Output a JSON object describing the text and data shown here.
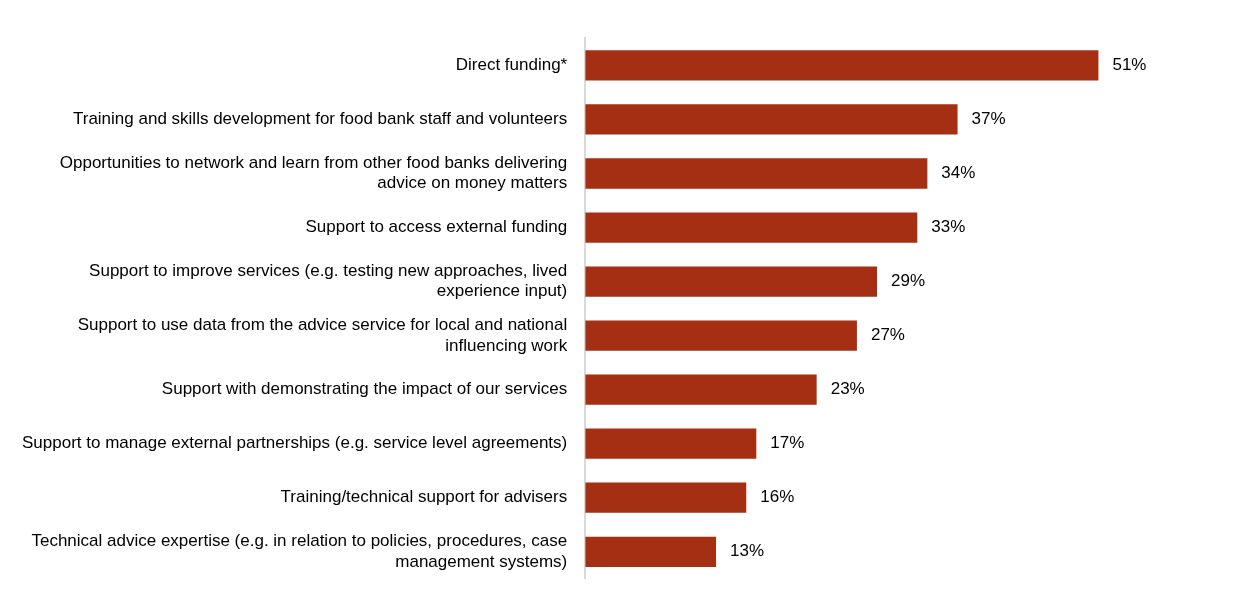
{
  "chart_data": {
    "type": "bar",
    "orientation": "horizontal",
    "categories": [
      "Direct funding*",
      "Training and skills development for food bank staff and volunteers",
      "Opportunities to network and learn from other food banks delivering advice on money matters",
      "Support to access external funding",
      "Support to improve services (e.g. testing new approaches, lived experience input)",
      "Support to use data from the advice service for local and national influencing work",
      "Support with demonstrating the impact of our services",
      "Support to manage external partnerships (e.g. service level agreements)",
      "Training/technical support for advisers",
      "Technical advice expertise (e.g. in relation to policies, procedures, case management systems)"
    ],
    "values": [
      51,
      37,
      34,
      33,
      29,
      27,
      23,
      17,
      16,
      13
    ],
    "value_labels": [
      "51%",
      "37%",
      "34%",
      "33%",
      "29%",
      "27%",
      "23%",
      "17%",
      "16%",
      "13%"
    ],
    "color": "#a52f12",
    "tick_labels": "y"
  }
}
